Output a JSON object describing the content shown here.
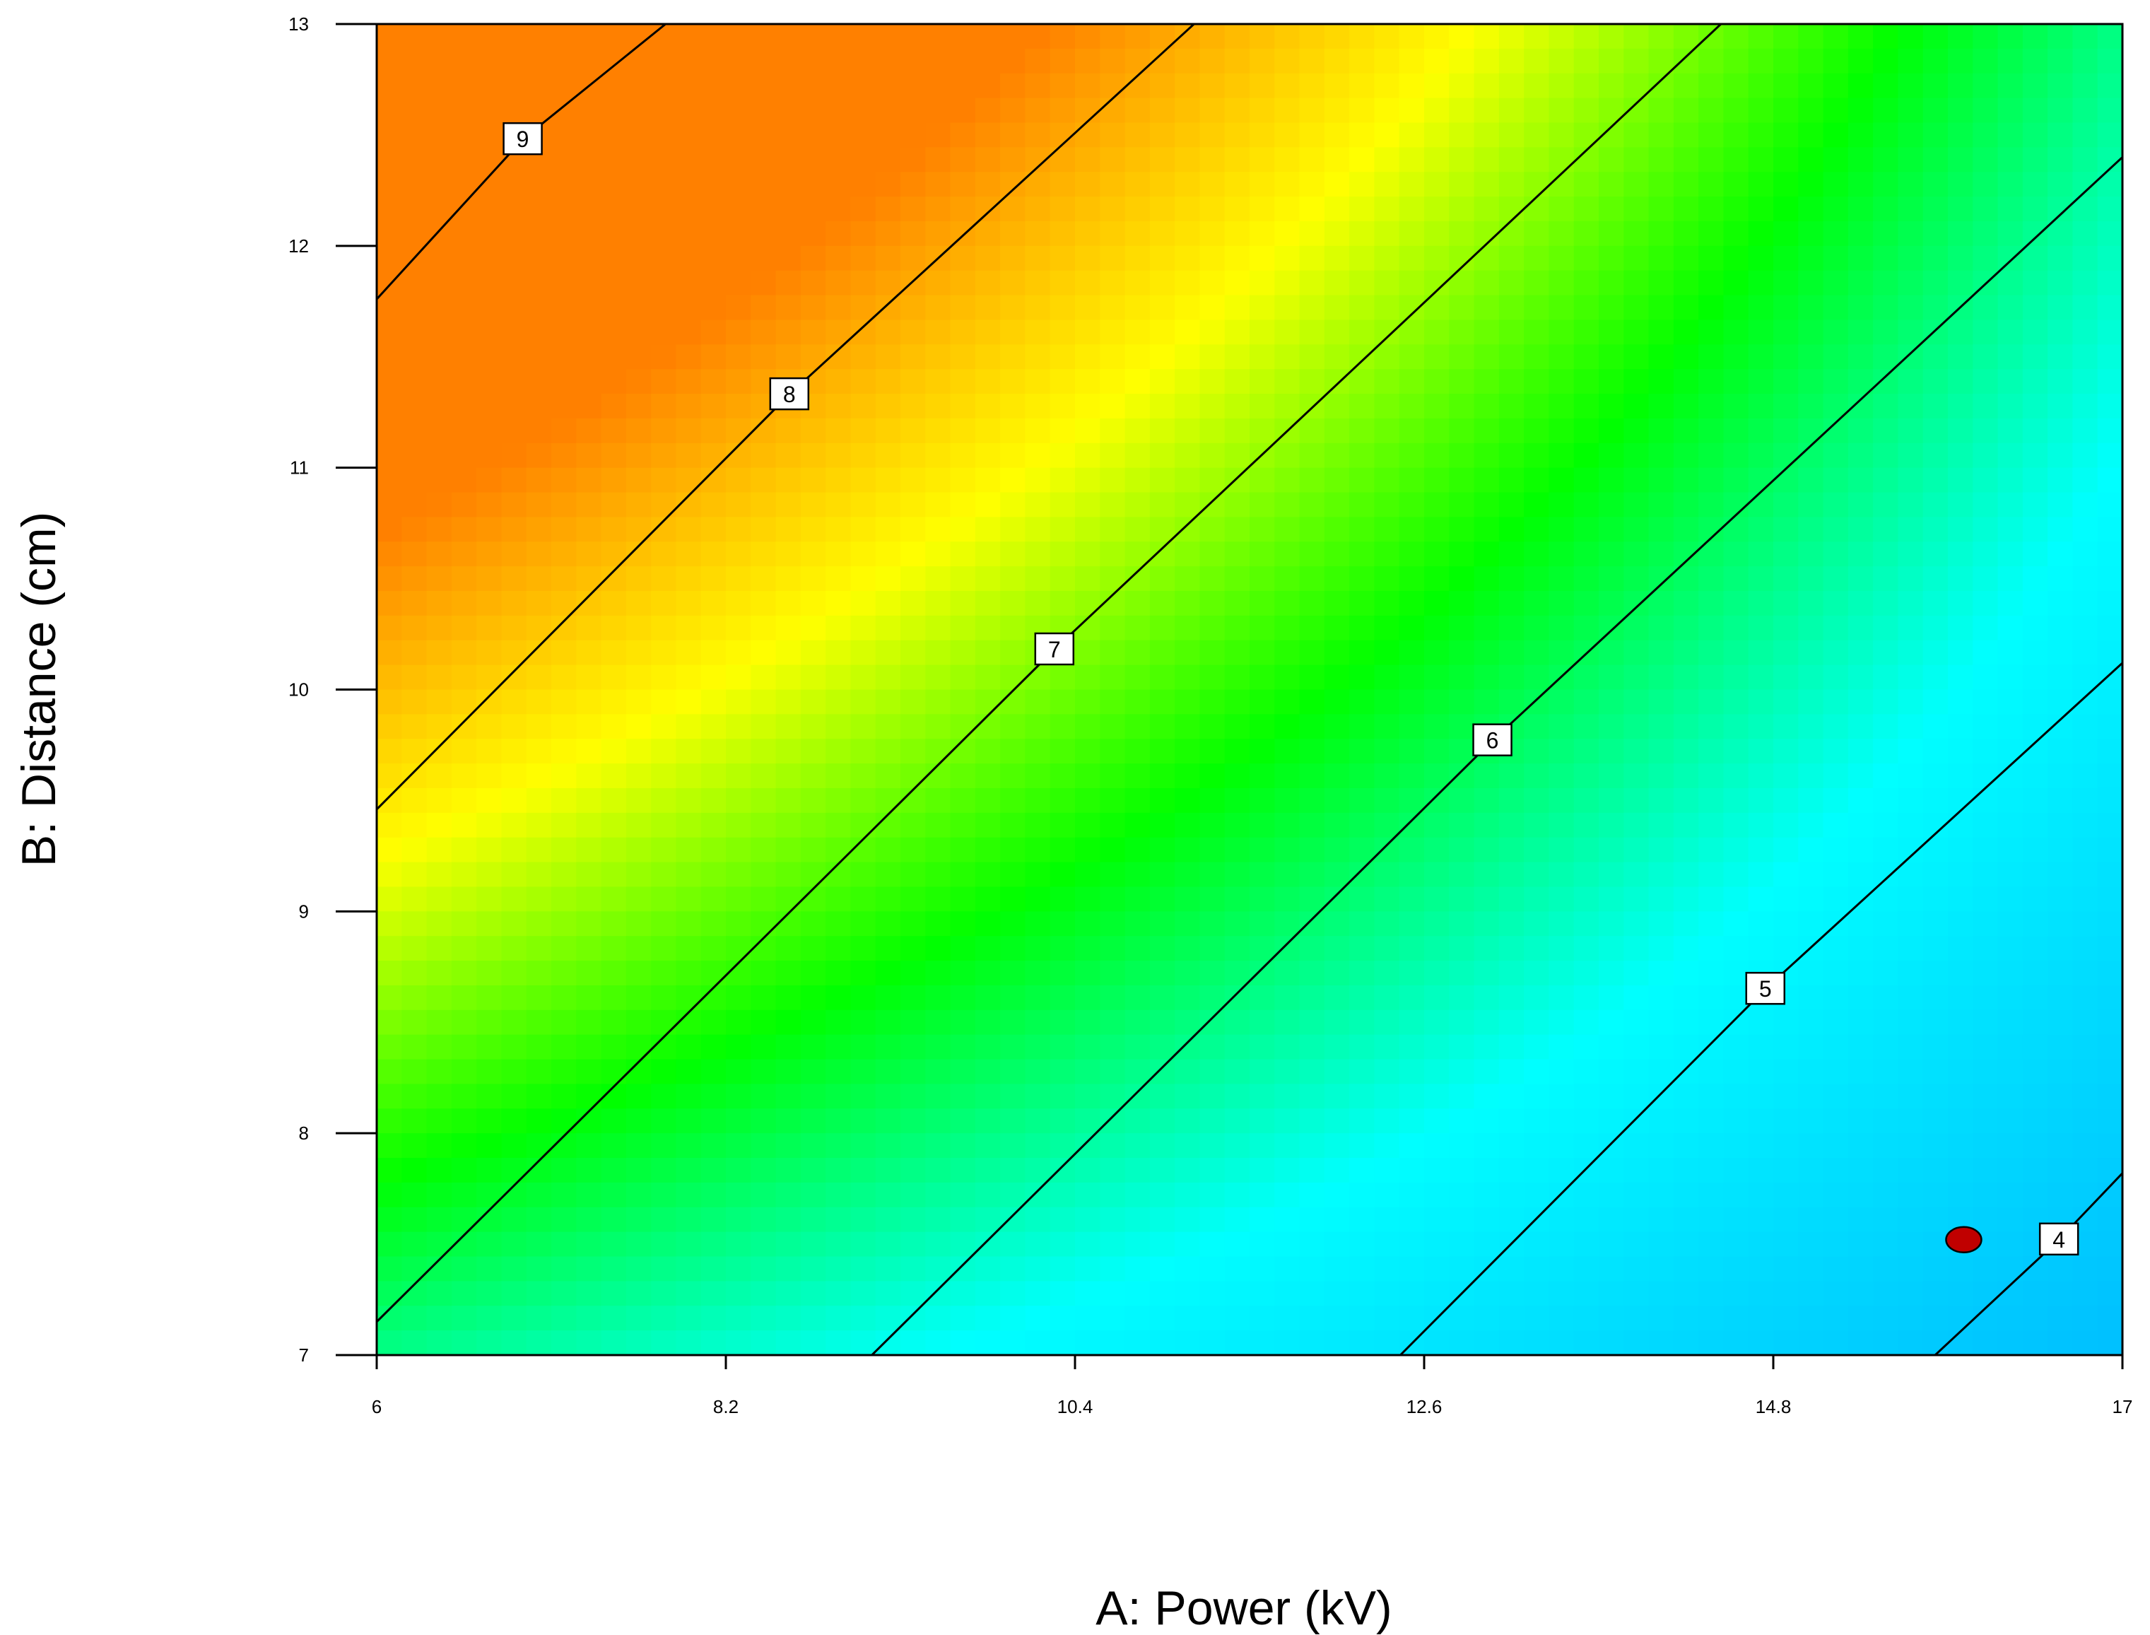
{
  "chart_data": {
    "type": "heatmap",
    "subtype": "contour",
    "title": "",
    "xlabel": "A: Power (kV)",
    "ylabel": "B: Distance (cm)",
    "xlim": [
      6,
      17
    ],
    "ylim": [
      7,
      13
    ],
    "x_ticks": [
      "6",
      "8.2",
      "10.4",
      "12.6",
      "14.8",
      "17"
    ],
    "y_ticks": [
      "7",
      "8",
      "9",
      "10",
      "11",
      "12",
      "13"
    ],
    "grid": false,
    "legend": "none",
    "colormap": [
      "#00bfff",
      "#00ffff",
      "#00ff00",
      "#ffff00",
      "#ff8000"
    ],
    "response_range": [
      3.6,
      9.6
    ],
    "contours": [
      {
        "level": 9,
        "label": "9",
        "label_at": [
          6.92,
          12.48
        ],
        "points": [
          [
            6.0,
            11.76
          ],
          [
            6.92,
            12.48
          ],
          [
            7.82,
            13.0
          ]
        ]
      },
      {
        "level": 8,
        "label": "8",
        "label_at": [
          8.6,
          11.33
        ],
        "points": [
          [
            6.0,
            9.46
          ],
          [
            8.6,
            11.33
          ],
          [
            11.15,
            13.0
          ]
        ]
      },
      {
        "level": 7,
        "label": "7",
        "label_at": [
          10.27,
          10.18
        ],
        "points": [
          [
            6.0,
            7.15
          ],
          [
            10.27,
            10.18
          ],
          [
            14.47,
            13.0
          ]
        ]
      },
      {
        "level": 6,
        "label": "6",
        "label_at": [
          13.03,
          9.77
        ],
        "points": [
          [
            9.12,
            7.0
          ],
          [
            13.03,
            9.77
          ],
          [
            17.0,
            12.4
          ]
        ]
      },
      {
        "level": 5,
        "label": "5",
        "label_at": [
          14.75,
          8.65
        ],
        "points": [
          [
            12.45,
            7.0
          ],
          [
            14.75,
            8.65
          ],
          [
            17.0,
            10.12
          ]
        ]
      },
      {
        "level": 4,
        "label": "4",
        "label_at": [
          16.6,
          7.52
        ],
        "points": [
          [
            15.82,
            7.0
          ],
          [
            16.6,
            7.52
          ],
          [
            17.0,
            7.82
          ]
        ]
      }
    ],
    "marker": {
      "x": 16.0,
      "y": 7.52,
      "color": "#c00000"
    }
  }
}
